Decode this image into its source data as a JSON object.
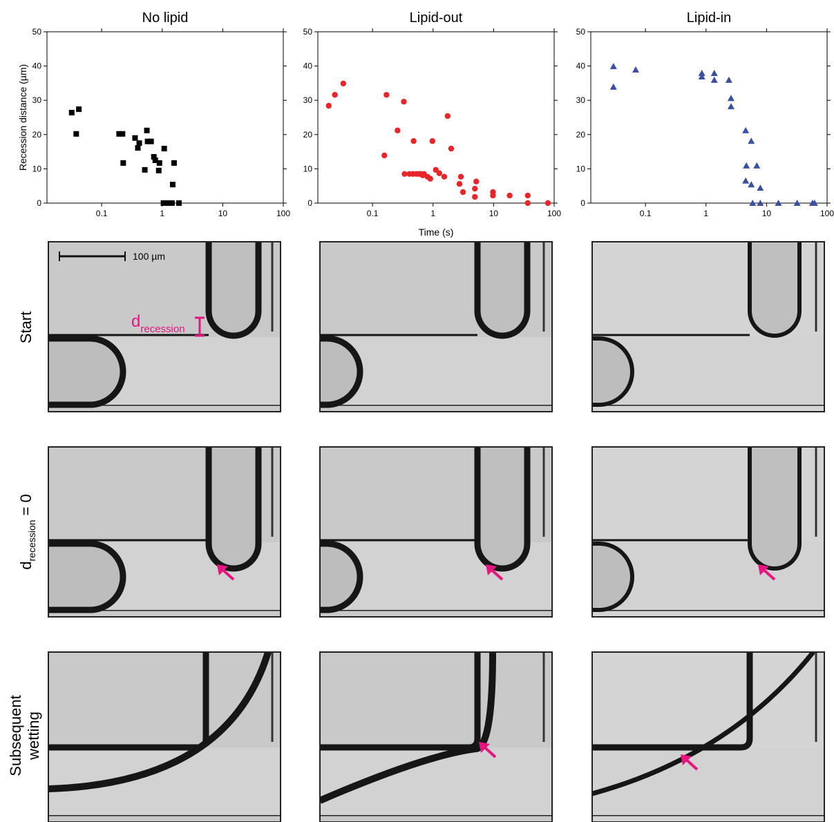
{
  "chart_data": [
    {
      "type": "scatter",
      "title": "No lipid",
      "ylabel": "Recession distance (µm)",
      "xscale": "log",
      "xlim": [
        0.0125,
        100
      ],
      "xticks": [
        0.1,
        1,
        10,
        100
      ],
      "ylim": [
        0,
        50
      ],
      "yticks": [
        0,
        10,
        20,
        30,
        40,
        50
      ],
      "marker": "square",
      "color": "#000000",
      "x": [
        0.032,
        0.042,
        0.038,
        0.194,
        0.221,
        0.227,
        0.356,
        0.396,
        0.418,
        0.558,
        0.516,
        0.574,
        0.655,
        0.728,
        0.768,
        0.877,
        0.9,
        1.08,
        1.05,
        1.17,
        1.3,
        1.45,
        1.57,
        1.49,
        1.89
      ],
      "values": [
        26.4,
        27.4,
        20.2,
        20.2,
        20.2,
        11.7,
        19.0,
        16.1,
        17.5,
        21.2,
        9.7,
        18.0,
        18.0,
        13.5,
        12.5,
        9.5,
        11.7,
        15.9,
        0,
        0,
        0,
        0,
        11.7,
        5.4,
        0
      ]
    },
    {
      "type": "scatter",
      "title": "Lipid-out",
      "xlabel": "Time (s)",
      "xscale": "log",
      "xlim": [
        0.0125,
        100
      ],
      "xticks": [
        0.1,
        1,
        10,
        100
      ],
      "ylim": [
        0,
        50
      ],
      "yticks": [
        0,
        10,
        20,
        30,
        40,
        50
      ],
      "marker": "circle",
      "color": "#e8262a",
      "x": [
        0.0189,
        0.0239,
        0.0329,
        0.157,
        0.17,
        0.259,
        0.329,
        0.338,
        0.407,
        0.464,
        0.477,
        0.53,
        0.589,
        0.621,
        0.673,
        0.709,
        0.809,
        0.9,
        0.975,
        1.11,
        1.27,
        1.53,
        1.74,
        1.99,
        2.73,
        2.88,
        3.12,
        4.9,
        4.9,
        5.16,
        9.75,
        9.75,
        18.4,
        36.6,
        36.6,
        78.8
      ],
      "values": [
        28.4,
        31.6,
        34.9,
        13.9,
        31.6,
        21.2,
        29.6,
        8.5,
        8.5,
        8.5,
        18.1,
        8.5,
        8.5,
        8.5,
        8.1,
        8.5,
        7.7,
        7.1,
        18.1,
        9.7,
        8.7,
        7.7,
        25.4,
        15.9,
        5.6,
        7.7,
        3.2,
        1.8,
        4.2,
        6.3,
        3.2,
        2.2,
        2.2,
        2.2,
        0,
        0
      ]
    },
    {
      "type": "scatter",
      "title": "Lipid-in",
      "xscale": "log",
      "xlim": [
        0.0125,
        100
      ],
      "xticks": [
        0.1,
        1,
        10,
        100
      ],
      "ylim": [
        0,
        50
      ],
      "yticks": [
        0,
        10,
        20,
        30,
        40,
        50
      ],
      "marker": "triangle",
      "color": "#3a4fa0",
      "x": [
        0.0296,
        0.0296,
        0.069,
        0.853,
        0.853,
        1.37,
        1.37,
        2.39,
        2.59,
        2.59,
        4.52,
        4.64,
        4.52,
        5.59,
        5.59,
        6.9,
        7.88,
        5.89,
        7.88,
        15.7,
        32.0,
        57.4,
        62.1
      ],
      "values": [
        39.9,
        33.9,
        38.9,
        37.9,
        36.9,
        37.9,
        35.9,
        35.9,
        30.6,
        28.2,
        21.2,
        10.9,
        6.5,
        18.1,
        5.4,
        10.9,
        4.4,
        0,
        0,
        0,
        0,
        0,
        0
      ]
    }
  ],
  "figure": {
    "scale_bar": "100 µm",
    "annotation": {
      "main": "d",
      "sub": "recession"
    },
    "row_labels": {
      "start": "Start",
      "contact": {
        "main": "d",
        "sub": "recession",
        "rest": " = 0"
      },
      "wetting": [
        "Subsequent",
        "wetting"
      ]
    }
  }
}
